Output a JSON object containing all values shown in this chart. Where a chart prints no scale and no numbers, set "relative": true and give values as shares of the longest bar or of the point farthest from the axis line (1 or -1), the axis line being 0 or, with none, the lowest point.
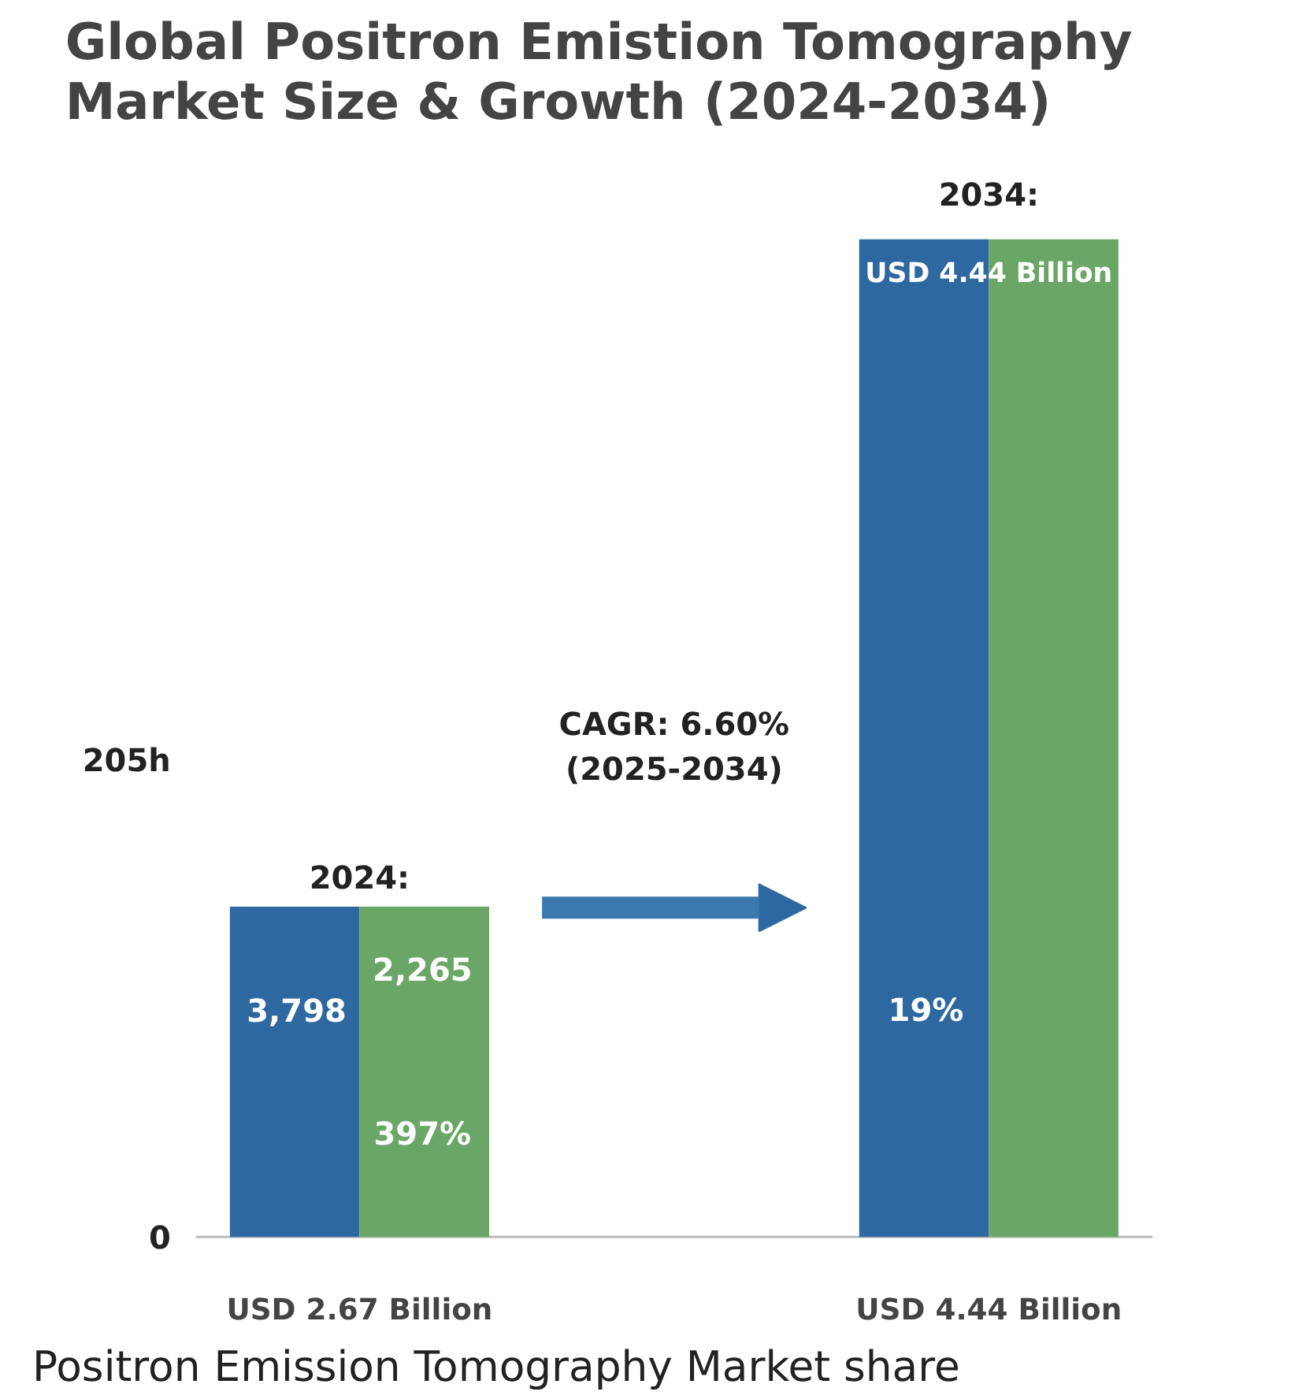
{
  "chart_data": {
    "type": "bar",
    "title": "Global Positron Emistion Tomography\nMarket Size & Growth (2024-2034)",
    "categories": [
      "USD 2.67 Billion",
      "USD 4.44 Billion"
    ],
    "relative": true,
    "series": [
      {
        "color": "#2e68a0",
        "values": [
          0.331,
          1
        ]
      },
      {
        "color": "#6aa665",
        "values": [
          0.331,
          1
        ]
      }
    ],
    "annotations": [
      "2024:",
      "2034:",
      "USD 4.44 Billion",
      "3,798",
      "2,265",
      "397%",
      "19%",
      "205h",
      "0",
      "CAGR: 6.60%\n(2025-2034)",
      "Positron Emission Tomography Market share"
    ]
  }
}
